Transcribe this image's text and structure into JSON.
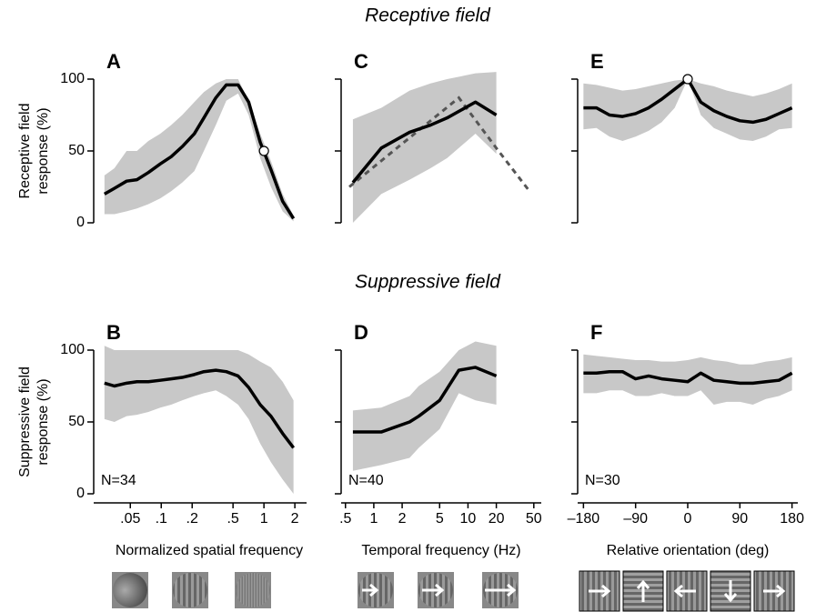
{
  "section_titles": [
    "Receptive field",
    "Suppressive field"
  ],
  "chart_data": [
    {
      "type": "line",
      "label": "A",
      "ylabel": [
        "Receptive  field",
        "response (%)"
      ],
      "log_x": true,
      "color": "#000000",
      "band_color": "#c8c8c8",
      "xlim": [
        0.022,
        2.6
      ],
      "ylim": [
        0,
        100
      ],
      "yticks": [
        0,
        50,
        100
      ],
      "x": [
        0.028,
        0.035,
        0.046,
        0.058,
        0.075,
        0.098,
        0.125,
        0.16,
        0.21,
        0.26,
        0.34,
        0.43,
        0.56,
        0.71,
        0.92,
        1.17,
        1.52,
        1.94
      ],
      "values": [
        20,
        24,
        29,
        30,
        35,
        41,
        46,
        53,
        62,
        73,
        87,
        96,
        96,
        84,
        56,
        37,
        15,
        3
      ],
      "upper": [
        33,
        38,
        50,
        50,
        57,
        62,
        68,
        75,
        84,
        91,
        97,
        100,
        100,
        85,
        62,
        43,
        20,
        5
      ],
      "lower": [
        6,
        6,
        8,
        10,
        13,
        17,
        22,
        28,
        36,
        50,
        68,
        85,
        90,
        75,
        45,
        25,
        8,
        1
      ],
      "marker": {
        "x": 1,
        "y": 50
      }
    },
    {
      "type": "line",
      "label": "B",
      "ylabel": [
        "Suppressive field",
        "response (%)"
      ],
      "xlabel": "Normalized spatial frequency",
      "note": "N=34",
      "log_x": true,
      "color": "#000000",
      "band_color": "#c8c8c8",
      "xlim": [
        0.022,
        2.6
      ],
      "ylim": [
        0,
        100
      ],
      "yticks": [
        0,
        50,
        100
      ],
      "xticks": [
        {
          "value": 0.05,
          "label": ".05"
        },
        {
          "value": 0.1,
          "label": ".1"
        },
        {
          "value": 0.2,
          "label": ".2"
        },
        {
          "value": 0.5,
          "label": ".5"
        },
        1,
        2
      ],
      "x": [
        0.028,
        0.035,
        0.046,
        0.058,
        0.075,
        0.098,
        0.125,
        0.16,
        0.21,
        0.26,
        0.34,
        0.43,
        0.56,
        0.71,
        0.92,
        1.17,
        1.52,
        1.94
      ],
      "values": [
        77,
        75,
        77,
        78,
        78,
        79,
        80,
        81,
        83,
        85,
        86,
        85,
        82,
        74,
        62,
        54,
        42,
        32
      ],
      "upper": [
        103,
        100,
        100,
        100,
        100,
        100,
        100,
        100,
        100,
        100,
        100,
        100,
        100,
        97,
        92,
        88,
        78,
        65
      ],
      "lower": [
        52,
        50,
        54,
        55,
        57,
        60,
        62,
        65,
        68,
        70,
        72,
        68,
        62,
        52,
        35,
        22,
        10,
        0
      ]
    },
    {
      "type": "line",
      "label": "C",
      "log_x": true,
      "color": "#000000",
      "band_color": "#c8c8c8",
      "xlim": [
        0.45,
        60
      ],
      "ylim": [
        0,
        100
      ],
      "x": [
        0.6,
        1.2,
        2.4,
        4,
        6,
        12,
        20
      ],
      "values": [
        28,
        52,
        63,
        68,
        73,
        84,
        75
      ],
      "upper": [
        72,
        80,
        92,
        97,
        100,
        104,
        105
      ],
      "lower": [
        0,
        20,
        30,
        38,
        45,
        62,
        48
      ],
      "dashed": {
        "x": [
          0.55,
          2,
          8,
          20,
          45
        ],
        "values": [
          25,
          55,
          87,
          52,
          22
        ],
        "color": "#555555"
      }
    },
    {
      "type": "line",
      "label": "D",
      "xlabel": "Temporal frequency (Hz)",
      "note": "N=40",
      "log_x": true,
      "color": "#000000",
      "band_color": "#c8c8c8",
      "xlim": [
        0.45,
        60
      ],
      "ylim": [
        0,
        100
      ],
      "xticks": [
        {
          "value": 0.5,
          "label": ".5"
        },
        1,
        2,
        5,
        10,
        20,
        50
      ],
      "x": [
        0.6,
        1.2,
        2.4,
        3,
        5,
        8,
        12,
        20
      ],
      "values": [
        43,
        43,
        50,
        54,
        65,
        86,
        88,
        82
      ],
      "upper": [
        58,
        60,
        68,
        75,
        85,
        100,
        106,
        103
      ],
      "lower": [
        16,
        20,
        25,
        32,
        45,
        70,
        65,
        62
      ]
    },
    {
      "type": "line",
      "label": "E",
      "log_x": false,
      "color": "#000000",
      "band_color": "#c8c8c8",
      "xlim": [
        -190,
        190
      ],
      "ylim": [
        0,
        100
      ],
      "x": [
        -180,
        -157.5,
        -135,
        -112.5,
        -90,
        -67.5,
        -45,
        -22.5,
        0,
        22.5,
        45,
        67.5,
        90,
        112.5,
        135,
        157.5,
        180
      ],
      "values": [
        80,
        80,
        75,
        74,
        76,
        80,
        86,
        93,
        100,
        84,
        78,
        74,
        71,
        70,
        72,
        76,
        80
      ],
      "upper": [
        97,
        96,
        94,
        92,
        93,
        95,
        97,
        99,
        100,
        97,
        95,
        92,
        90,
        88,
        90,
        93,
        97
      ],
      "lower": [
        65,
        66,
        60,
        57,
        60,
        64,
        70,
        80,
        100,
        75,
        66,
        62,
        58,
        57,
        60,
        65,
        66
      ],
      "marker": {
        "x": 0,
        "y": 100
      }
    },
    {
      "type": "line",
      "label": "F",
      "xlabel": "Relative orientation (deg)",
      "note": "N=30",
      "log_x": false,
      "color": "#000000",
      "band_color": "#c8c8c8",
      "xlim": [
        -190,
        190
      ],
      "ylim": [
        0,
        100
      ],
      "xticks": [
        {
          "value": -180,
          "label": "–180"
        },
        {
          "value": -90,
          "label": "–90"
        },
        0,
        90,
        180
      ],
      "x": [
        -180,
        -157.5,
        -135,
        -112.5,
        -90,
        -67.5,
        -45,
        -22.5,
        0,
        22.5,
        45,
        67.5,
        90,
        112.5,
        135,
        157.5,
        180
      ],
      "values": [
        84,
        84,
        85,
        85,
        80,
        82,
        80,
        79,
        78,
        84,
        79,
        78,
        77,
        77,
        78,
        79,
        84
      ],
      "upper": [
        97,
        96,
        95,
        94,
        93,
        93,
        92,
        92,
        93,
        95,
        93,
        92,
        90,
        90,
        92,
        93,
        95
      ],
      "lower": [
        70,
        70,
        72,
        72,
        68,
        68,
        70,
        68,
        68,
        72,
        62,
        64,
        64,
        62,
        66,
        68,
        72
      ]
    }
  ]
}
